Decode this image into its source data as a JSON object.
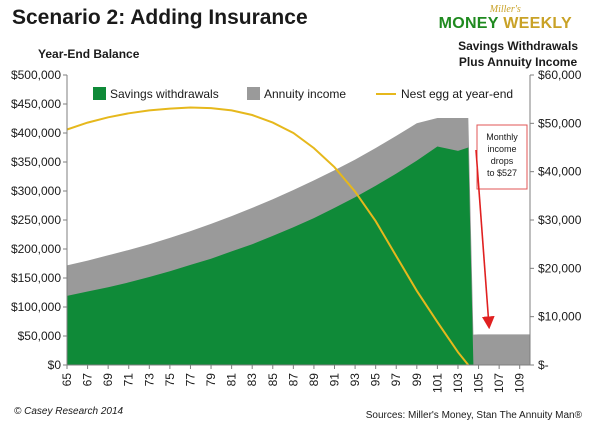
{
  "header": {
    "title": "Scenario 2: Adding Insurance",
    "logo_top": "Miller's",
    "logo_word1": "MONEY",
    "logo_word2": "WEEKLY"
  },
  "footer": {
    "copyright": "© Casey Research 2014",
    "sources": "Sources: Miller's Money, Stan The Annuity Man®"
  },
  "colors": {
    "savings": "#0f8a38",
    "annuity": "#9a9a9a",
    "nest_egg": "#e6b81c",
    "callout_border": "#e05555",
    "arrow": "#e02020"
  },
  "chart_data": {
    "type": "area",
    "ylabel_left": "Year-End Balance",
    "ylabel_right_lines": [
      "Savings Withdrawals",
      "Plus Annuity Income"
    ],
    "left_ticks": [
      "$500,000",
      "$450,000",
      "$400,000",
      "$350,000",
      "$300,000",
      "$250,000",
      "$200,000",
      "$150,000",
      "$100,000",
      "$50,000",
      "$0"
    ],
    "right_ticks": [
      "$60,000",
      "$50,000",
      "$40,000",
      "$30,000",
      "$20,000",
      "$10,000",
      "$-"
    ],
    "x_ticks": [
      "65",
      "67",
      "69",
      "71",
      "73",
      "75",
      "77",
      "79",
      "81",
      "83",
      "85",
      "87",
      "89",
      "91",
      "93",
      "95",
      "97",
      "99",
      "101",
      "103",
      "105",
      "107",
      "109"
    ],
    "xlim": [
      65,
      110
    ],
    "ylim_left": [
      0,
      500000
    ],
    "ylim_right": [
      0,
      60000
    ],
    "legend": [
      "Savings withdrawals",
      "Annuity income",
      "Nest egg at year-end"
    ],
    "legend_placement": "top",
    "series": [
      {
        "name": "Savings withdrawals",
        "axis": "right",
        "kind": "area",
        "x": [
          65,
          67,
          69,
          71,
          73,
          75,
          77,
          79,
          81,
          83,
          85,
          87,
          89,
          91,
          93,
          95,
          97,
          99,
          101,
          103,
          104,
          104.5
        ],
        "values": [
          14300,
          15200,
          16100,
          17100,
          18200,
          19400,
          20700,
          22000,
          23500,
          25000,
          26700,
          28500,
          30400,
          32500,
          34700,
          37100,
          39600,
          42300,
          45200,
          44300,
          45000,
          0
        ]
      },
      {
        "name": "Annuity income",
        "axis": "right",
        "kind": "area",
        "x": [
          65,
          67,
          69,
          71,
          73,
          75,
          77,
          79,
          81,
          83,
          85,
          87,
          89,
          91,
          93,
          95,
          97,
          99,
          101,
          103,
          104,
          104.5,
          105,
          110
        ],
        "values": [
          20600,
          21600,
          22700,
          23800,
          25000,
          26300,
          27700,
          29200,
          30800,
          32500,
          34300,
          36200,
          38200,
          40300,
          42500,
          44900,
          47400,
          50000,
          51100,
          51100,
          51100,
          6300,
          6324,
          6324
        ]
      },
      {
        "name": "Nest egg at year-end",
        "axis": "left",
        "kind": "line",
        "x": [
          65,
          67,
          69,
          71,
          73,
          75,
          77,
          79,
          81,
          83,
          85,
          87,
          89,
          91,
          93,
          95,
          97,
          99,
          101,
          103,
          104
        ],
        "values": [
          406000,
          418000,
          427000,
          434000,
          439000,
          442000,
          444000,
          443000,
          439000,
          431000,
          418000,
          400000,
          374000,
          341000,
          299000,
          248000,
          188000,
          128000,
          74000,
          22000,
          0
        ]
      }
    ],
    "annotation": "Monthly income drops to $527",
    "annotation_lines": [
      "Monthly",
      "income",
      "drops",
      "to $527"
    ]
  }
}
